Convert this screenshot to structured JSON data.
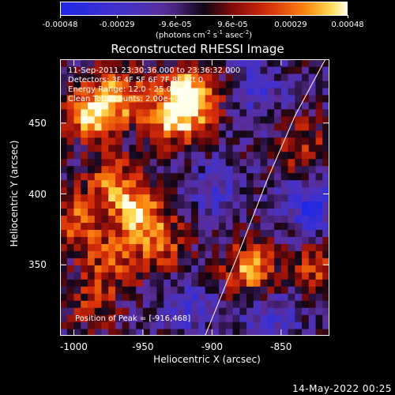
{
  "colorbar": {
    "tick_labels": [
      "-0.00048",
      "-0.00029",
      "-9.6e-05",
      "9.6e-05",
      "0.00029",
      "0.00048"
    ],
    "tick_values": [
      -0.00048,
      -0.00029,
      -9.6e-05,
      9.6e-05,
      0.00029,
      0.00048
    ],
    "range": [
      -0.00048,
      0.00048
    ],
    "units_prefix": "(photons cm",
    "units_sup1": "-2",
    "units_mid1": " s",
    "units_sup2": "-1",
    "units_mid2": " asec",
    "units_sup3": "-2",
    "units_suffix": ")"
  },
  "chart_data": {
    "type": "heatmap",
    "title": "Reconstructed RHESSI Image",
    "xlabel": "Heliocentric X (arcsec)",
    "ylabel": "Heliocentric Y (arcsec)",
    "xlim": [
      -1010,
      -815
    ],
    "ylim": [
      300,
      495
    ],
    "x_ticks": [
      -1000,
      -950,
      -900,
      -850
    ],
    "y_ticks": [
      350,
      400,
      450
    ],
    "annotations": {
      "line1": "11-Sep-2011 23:30:36.000 to 23:36:32.000",
      "line2": "Detectors: 3F 4F 5F 6F 7F 8F Att 0",
      "line3": "Energy Range: 12.0 - 25.0 keV",
      "line4": "Clean     Total counts: 2.00e+04",
      "peak": "Position of Peak = [-916,468]"
    },
    "peak": {
      "x": -916,
      "y": 468
    },
    "bright_regions": [
      {
        "x": -990,
        "y": 455,
        "level": 0.85
      },
      {
        "x": -968,
        "y": 468,
        "level": 0.7
      },
      {
        "x": -930,
        "y": 452,
        "level": 0.8
      },
      {
        "x": -916,
        "y": 468,
        "level": 1.0
      },
      {
        "x": -975,
        "y": 405,
        "level": 0.6
      },
      {
        "x": -955,
        "y": 385,
        "level": 0.75
      },
      {
        "x": -1000,
        "y": 378,
        "level": 0.6
      },
      {
        "x": -940,
        "y": 360,
        "level": 0.55
      },
      {
        "x": -975,
        "y": 350,
        "level": 0.5
      },
      {
        "x": -875,
        "y": 345,
        "level": 0.75
      },
      {
        "x": -825,
        "y": 345,
        "level": 0.55
      },
      {
        "x": -835,
        "y": 430,
        "level": 0.45
      },
      {
        "x": -990,
        "y": 320,
        "level": 0.4
      }
    ],
    "dark_regions": [
      {
        "x": -830,
        "y": 390,
        "level": -0.6
      },
      {
        "x": -870,
        "y": 470,
        "level": -0.35
      },
      {
        "x": -900,
        "y": 400,
        "level": -0.3
      },
      {
        "x": -860,
        "y": 310,
        "level": -0.35
      },
      {
        "x": -920,
        "y": 320,
        "level": -0.3
      }
    ],
    "limb_curve": [
      [
        -905,
        300
      ],
      [
        -880,
        360
      ],
      [
        -860,
        410
      ],
      [
        -840,
        455
      ],
      [
        -818,
        495
      ]
    ]
  },
  "timestamp": "14-May-2022 00:25"
}
